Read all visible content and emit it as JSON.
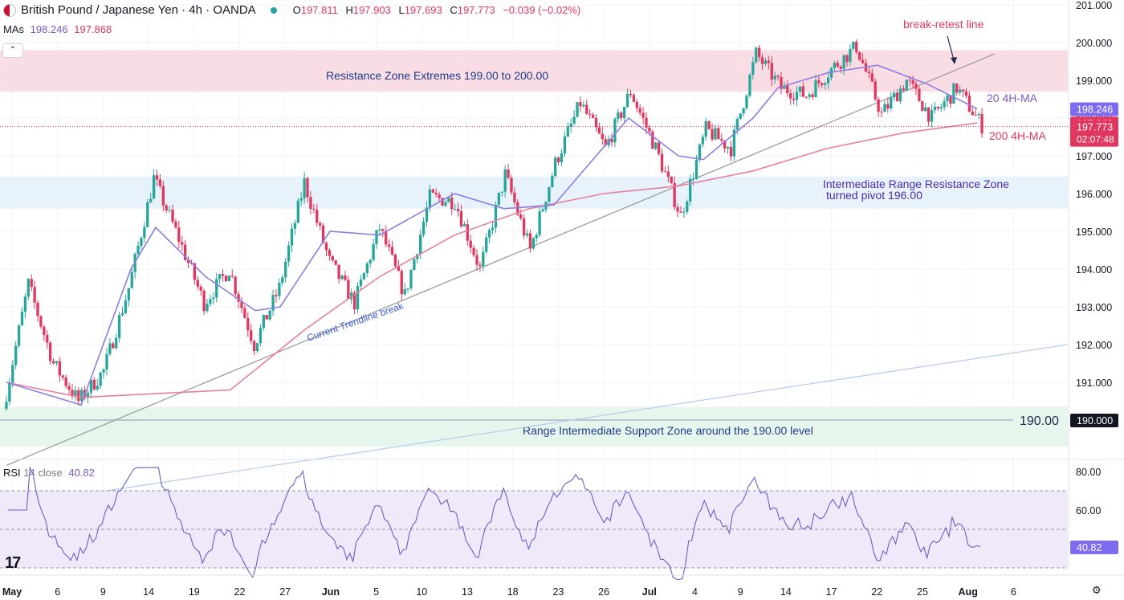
{
  "header": {
    "symbol_title": "British Pound / Japanese Yen · 4h · OANDA",
    "open_label": "O",
    "open": "197.811",
    "high_label": "H",
    "high": "197.903",
    "low_label": "L",
    "low": "197.693",
    "close_label": "C",
    "close": "197.773",
    "change": "−0.039 (−0.02%)"
  },
  "mas": {
    "label": "MAs",
    "ma20": "198.246",
    "ma200": "197.868"
  },
  "rsi": {
    "label": "RSI",
    "settings": "14 close",
    "value": "40.82"
  },
  "price_badges": {
    "ma20": "198.246",
    "ma200": "197.868",
    "last": "197.773",
    "countdown": "02:07:48",
    "level_190": "190.000"
  },
  "colors": {
    "up": "#26a69a",
    "down": "#e1375f",
    "ma20": "#8c7ee0",
    "ma200": "#e8809a",
    "resistance_zone": "#f8d7df",
    "pivot_zone": "#e3f0fa",
    "support_zone": "#e3f5ea",
    "rsi_band": "#efe9f9"
  },
  "chart_data": {
    "type": "candlestick",
    "timeframe": "4h",
    "x_ticks": [
      "May",
      "6",
      "9",
      "14",
      "19",
      "22",
      "27",
      "Jun",
      "5",
      "10",
      "13",
      "18",
      "23",
      "26",
      "Jul",
      "4",
      "9",
      "14",
      "17",
      "22",
      "25",
      "Aug",
      "6"
    ],
    "y_ticks": [
      "201.000",
      "200.000",
      "199.000",
      "198.000",
      "197.000",
      "196.000",
      "195.000",
      "194.000",
      "193.000",
      "192.000",
      "191.000"
    ],
    "ylim": [
      189.0,
      201.0
    ],
    "price_path": [
      [
        0,
        190.3
      ],
      [
        1,
        193.6
      ],
      [
        2,
        191.5
      ],
      [
        3,
        190.5
      ],
      [
        4,
        191.3
      ],
      [
        5,
        193.5
      ],
      [
        6,
        196.4
      ],
      [
        7,
        194.8
      ],
      [
        8,
        193.1
      ],
      [
        9,
        194.0
      ],
      [
        10,
        192.0
      ],
      [
        11,
        193.5
      ],
      [
        12,
        196.3
      ],
      [
        13,
        194.2
      ],
      [
        14,
        193.1
      ],
      [
        15,
        195.1
      ],
      [
        16,
        193.3
      ],
      [
        17,
        195.9
      ],
      [
        18,
        195.8
      ],
      [
        19,
        194.0
      ],
      [
        20,
        196.5
      ],
      [
        21,
        194.5
      ],
      [
        22,
        196.8
      ],
      [
        23,
        198.4
      ],
      [
        24,
        197.2
      ],
      [
        25,
        198.7
      ],
      [
        26,
        197.2
      ],
      [
        27,
        195.4
      ],
      [
        28,
        197.7
      ],
      [
        29,
        197.2
      ],
      [
        30,
        199.7
      ],
      [
        31,
        198.8
      ],
      [
        32,
        198.6
      ],
      [
        33,
        199.3
      ],
      [
        34,
        199.9
      ],
      [
        35,
        198.1
      ],
      [
        36,
        199.0
      ],
      [
        37,
        198.0
      ],
      [
        38,
        198.8
      ],
      [
        39,
        197.8
      ]
    ],
    "ma20_path": [
      [
        0,
        191.0
      ],
      [
        3,
        190.4
      ],
      [
        5,
        194.0
      ],
      [
        6,
        195.1
      ],
      [
        8,
        193.8
      ],
      [
        10,
        192.9
      ],
      [
        11,
        193.0
      ],
      [
        13,
        195.0
      ],
      [
        15,
        194.9
      ],
      [
        18,
        196.0
      ],
      [
        20,
        195.6
      ],
      [
        22,
        195.7
      ],
      [
        25,
        198.0
      ],
      [
        27,
        197.0
      ],
      [
        28,
        196.9
      ],
      [
        30,
        198.0
      ],
      [
        31,
        198.8
      ],
      [
        33,
        199.2
      ],
      [
        35,
        199.4
      ],
      [
        37,
        198.9
      ],
      [
        39,
        198.25
      ]
    ],
    "ma200_path": [
      [
        0,
        191.0
      ],
      [
        3,
        190.6
      ],
      [
        6,
        190.7
      ],
      [
        9,
        190.8
      ],
      [
        12,
        192.4
      ],
      [
        15,
        193.8
      ],
      [
        18,
        194.9
      ],
      [
        21,
        195.6
      ],
      [
        24,
        196.0
      ],
      [
        27,
        196.2
      ],
      [
        30,
        196.6
      ],
      [
        33,
        197.2
      ],
      [
        36,
        197.6
      ],
      [
        39,
        197.87
      ]
    ],
    "series": [
      {
        "name": "20 4H-MA",
        "last": 198.246
      },
      {
        "name": "200 4H-MA",
        "last": 197.868
      }
    ],
    "zones": [
      {
        "label": "Resistance Zone Extremes 199.00 to 200.00",
        "from": 198.7,
        "to": 199.8
      },
      {
        "label_lines": [
          "Intermediate Range Resistance Zone",
          "turned pivot 196.00"
        ],
        "from": 195.6,
        "to": 196.45
      },
      {
        "label": "Range Intermediate Support Zone around the 190.00 level",
        "from": 189.3,
        "to": 190.35
      }
    ],
    "horizontal_line": {
      "value": 190.0,
      "label": "190.00"
    },
    "trendlines": [
      {
        "label": "Current Trendline break",
        "from": [
          0,
          188.8
        ],
        "to": [
          39.7,
          199.7
        ]
      },
      {
        "from": [
          0,
          189.0
        ],
        "to": [
          41,
          192.0
        ]
      }
    ],
    "annotations": [
      "break-retest line",
      "20 4H-MA",
      "200 4H-MA",
      "Current Trendline break"
    ],
    "current_price": 197.773,
    "rsi": {
      "period": 14,
      "source": "close",
      "last": 40.82,
      "y_ticks": [
        "80.00",
        "60.00"
      ],
      "bands": [
        70,
        30
      ],
      "midline": 50
    }
  }
}
